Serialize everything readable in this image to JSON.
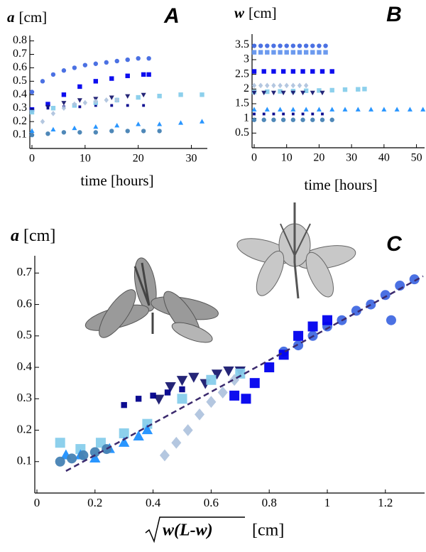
{
  "chart_data": [
    {
      "type": "scatter",
      "panel_label": "A",
      "y_label": {
        "symbol": "a",
        "unit": "[cm]"
      },
      "x_label": "time [hours]",
      "xlim": [
        0,
        33
      ],
      "ylim": [
        0,
        0.84
      ],
      "xticks": [
        0,
        10,
        20,
        30
      ],
      "yticks": [
        0.1,
        0.2,
        0.3,
        0.4,
        0.5,
        0.6,
        0.7,
        0.8
      ],
      "series": [
        {
          "color": "#4169e1",
          "marker": "circle",
          "x": [
            0,
            2,
            4,
            6,
            8,
            10,
            12,
            14,
            16,
            18,
            20,
            22
          ],
          "values": [
            0.42,
            0.5,
            0.55,
            0.58,
            0.6,
            0.62,
            0.63,
            0.64,
            0.65,
            0.66,
            0.67,
            0.67
          ]
        },
        {
          "color": "#0000ee",
          "marker": "square",
          "x": [
            0,
            3,
            6,
            9,
            12,
            15,
            18,
            21,
            22
          ],
          "values": [
            0.29,
            0.33,
            0.4,
            0.46,
            0.5,
            0.52,
            0.54,
            0.55,
            0.55
          ]
        },
        {
          "color": "#191970",
          "marker": "triangle-down",
          "x": [
            0,
            3,
            6,
            9,
            12,
            15,
            18,
            21
          ],
          "values": [
            0.28,
            0.31,
            0.34,
            0.36,
            0.37,
            0.38,
            0.39,
            0.4
          ]
        },
        {
          "color": "#00008b",
          "marker": "small-square",
          "x": [
            0,
            3,
            6,
            9,
            12,
            15,
            18,
            21
          ],
          "values": [
            0.29,
            0.3,
            0.31,
            0.31,
            0.32,
            0.32,
            0.32,
            0.32
          ]
        },
        {
          "color": "#87ceeb",
          "marker": "square",
          "x": [
            0,
            4,
            8,
            12,
            16,
            20,
            24,
            28,
            32
          ],
          "values": [
            0.27,
            0.3,
            0.32,
            0.34,
            0.36,
            0.38,
            0.39,
            0.4,
            0.4
          ]
        },
        {
          "color": "#b0c4de",
          "marker": "diamond",
          "x": [
            0,
            2,
            4,
            6,
            8,
            10,
            12,
            14,
            16
          ],
          "values": [
            0.12,
            0.2,
            0.26,
            0.3,
            0.33,
            0.34,
            0.35,
            0.36,
            0.36
          ]
        },
        {
          "color": "#1e90ff",
          "marker": "triangle-up",
          "x": [
            0,
            4,
            8,
            12,
            16,
            20,
            24,
            28,
            32
          ],
          "values": [
            0.13,
            0.14,
            0.15,
            0.16,
            0.17,
            0.18,
            0.18,
            0.19,
            0.2
          ]
        },
        {
          "color": "#4682b4",
          "marker": "circle",
          "x": [
            0,
            3,
            6,
            9,
            12,
            15,
            18,
            21,
            24
          ],
          "values": [
            0.1,
            0.11,
            0.12,
            0.12,
            0.12,
            0.13,
            0.13,
            0.13,
            0.13
          ]
        }
      ]
    },
    {
      "type": "scatter",
      "panel_label": "B",
      "y_label": {
        "symbol": "w",
        "unit": "[cm]"
      },
      "x_label": "time [hours]",
      "xlim": [
        0,
        52.5
      ],
      "ylim": [
        0,
        3.87
      ],
      "xticks": [
        0,
        10,
        20,
        30,
        40,
        50
      ],
      "yticks": [
        0.5,
        1,
        1.5,
        2,
        2.5,
        3,
        3.5
      ],
      "series": [
        {
          "color": "#4169e1",
          "marker": "circle",
          "x": [
            0,
            2,
            4,
            6,
            8,
            10,
            12,
            14,
            16,
            18,
            20,
            22
          ],
          "values": [
            3.47,
            3.47,
            3.47,
            3.47,
            3.47,
            3.47,
            3.47,
            3.47,
            3.47,
            3.47,
            3.47,
            3.47
          ]
        },
        {
          "color": "#6495ed",
          "marker": "square",
          "x": [
            0,
            2,
            4,
            6,
            8,
            10,
            12,
            14,
            16,
            18,
            20,
            22
          ],
          "values": [
            3.25,
            3.25,
            3.25,
            3.25,
            3.25,
            3.25,
            3.25,
            3.25,
            3.25,
            3.25,
            3.25,
            3.25
          ]
        },
        {
          "color": "#0000ee",
          "marker": "square",
          "x": [
            0,
            3,
            6,
            9,
            12,
            15,
            18,
            21,
            24
          ],
          "values": [
            2.6,
            2.6,
            2.6,
            2.6,
            2.6,
            2.6,
            2.6,
            2.6,
            2.6
          ]
        },
        {
          "color": "#b0c4de",
          "marker": "diamond",
          "x": [
            0,
            2,
            4,
            6,
            8,
            10,
            12,
            14,
            16
          ],
          "values": [
            2.12,
            2.12,
            2.12,
            2.12,
            2.12,
            2.12,
            2.12,
            2.12,
            2.12
          ]
        },
        {
          "color": "#87ceeb",
          "marker": "square",
          "x": [
            0,
            4,
            8,
            12,
            16,
            20,
            24,
            28,
            32,
            34
          ],
          "values": [
            1.9,
            1.91,
            1.92,
            1.93,
            1.94,
            1.95,
            1.96,
            1.98,
            1.99,
            2.0
          ]
        },
        {
          "color": "#191970",
          "marker": "triangle-down",
          "x": [
            0,
            3,
            6,
            9,
            12,
            15,
            18,
            21
          ],
          "values": [
            1.88,
            1.88,
            1.88,
            1.88,
            1.88,
            1.88,
            1.88,
            1.88
          ]
        },
        {
          "color": "#1e90ff",
          "marker": "triangle-up",
          "x": [
            0,
            4,
            8,
            12,
            16,
            20,
            24,
            28,
            32,
            36,
            40,
            44,
            48,
            52
          ],
          "values": [
            1.3,
            1.3,
            1.3,
            1.3,
            1.3,
            1.3,
            1.3,
            1.3,
            1.3,
            1.3,
            1.3,
            1.3,
            1.3,
            1.3
          ]
        },
        {
          "color": "#00008b",
          "marker": "small-square",
          "x": [
            0,
            3,
            6,
            9,
            12,
            15,
            18,
            21
          ],
          "values": [
            1.15,
            1.15,
            1.15,
            1.15,
            1.15,
            1.15,
            1.15,
            1.15
          ]
        },
        {
          "color": "#4682b4",
          "marker": "circle",
          "x": [
            0,
            3,
            6,
            9,
            12,
            15,
            18,
            21,
            24
          ],
          "values": [
            0.95,
            0.95,
            0.95,
            0.95,
            0.95,
            0.95,
            0.95,
            0.95,
            0.95
          ]
        }
      ]
    },
    {
      "type": "scatter",
      "panel_label": "C",
      "y_label": {
        "symbol": "a",
        "unit": "[cm]"
      },
      "x_label": {
        "symbol": "w(L-w)",
        "unit": "[cm]"
      },
      "xlim": [
        0,
        1.335
      ],
      "ylim": [
        0,
        0.755
      ],
      "xticks": [
        0,
        0.2,
        0.4,
        0.6,
        0.8,
        1,
        1.2
      ],
      "yticks": [
        0.1,
        0.2,
        0.3,
        0.4,
        0.5,
        0.6,
        0.7
      ],
      "series": [
        {
          "color": "#4169e1",
          "marker": "circle",
          "x": [
            0.85,
            0.9,
            0.95,
            1.0,
            1.05,
            1.1,
            1.15,
            1.2,
            1.22,
            1.25,
            1.3
          ],
          "values": [
            0.45,
            0.47,
            0.5,
            0.53,
            0.55,
            0.58,
            0.6,
            0.63,
            0.55,
            0.66,
            0.68
          ]
        },
        {
          "color": "#0000ee",
          "marker": "square",
          "x": [
            0.68,
            0.72,
            0.75,
            0.8,
            0.85,
            0.9,
            0.95,
            1.0
          ],
          "values": [
            0.31,
            0.3,
            0.35,
            0.4,
            0.44,
            0.5,
            0.53,
            0.55
          ]
        },
        {
          "color": "#191970",
          "marker": "triangle-down",
          "x": [
            0.42,
            0.46,
            0.5,
            0.54,
            0.58,
            0.62,
            0.66,
            0.7
          ],
          "values": [
            0.3,
            0.34,
            0.36,
            0.37,
            0.35,
            0.38,
            0.39,
            0.39
          ]
        },
        {
          "color": "#00008b",
          "marker": "small-square",
          "x": [
            0.3,
            0.35,
            0.4,
            0.45,
            0.5
          ],
          "values": [
            0.28,
            0.3,
            0.31,
            0.32,
            0.33
          ]
        },
        {
          "color": "#87ceeb",
          "marker": "square",
          "x": [
            0.08,
            0.15,
            0.22,
            0.3,
            0.38,
            0.5,
            0.6,
            0.7
          ],
          "values": [
            0.16,
            0.14,
            0.16,
            0.19,
            0.22,
            0.3,
            0.36,
            0.38
          ]
        },
        {
          "color": "#b0c4de",
          "marker": "diamond",
          "x": [
            0.44,
            0.48,
            0.52,
            0.56,
            0.6,
            0.64,
            0.68
          ],
          "values": [
            0.12,
            0.16,
            0.2,
            0.25,
            0.29,
            0.32,
            0.36
          ]
        },
        {
          "color": "#1e90ff",
          "marker": "triangle-up",
          "x": [
            0.1,
            0.15,
            0.2,
            0.25,
            0.3,
            0.35,
            0.38
          ],
          "values": [
            0.12,
            0.12,
            0.11,
            0.14,
            0.16,
            0.18,
            0.2
          ]
        },
        {
          "color": "#4682b4",
          "marker": "circle",
          "x": [
            0.08,
            0.12,
            0.16,
            0.2,
            0.24
          ],
          "values": [
            0.1,
            0.11,
            0.12,
            0.13,
            0.14
          ]
        }
      ],
      "fit": {
        "color": "#3b2a6e",
        "x": [
          0.1,
          1.33
        ],
        "values": [
          0.07,
          0.69
        ]
      }
    }
  ]
}
